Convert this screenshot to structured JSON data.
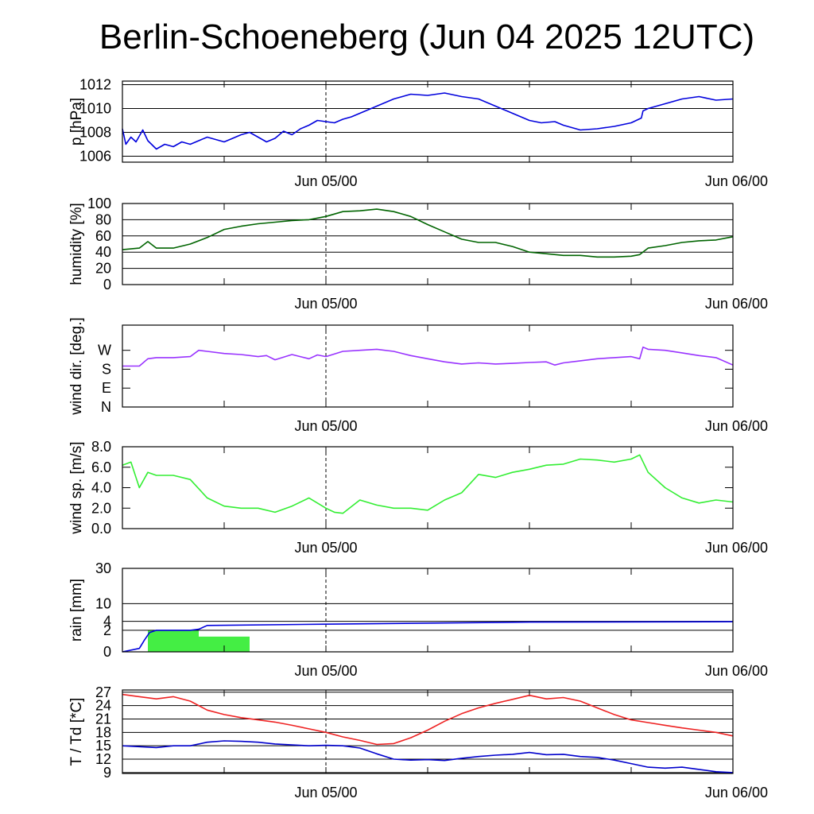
{
  "title": "Berlin-Schoeneberg (Jun 04 2025 12UTC)",
  "x_ticks": [
    {
      "label": "Jun 05/00",
      "hour": 12
    },
    {
      "label": "Jun 06/00",
      "hour": 36
    }
  ],
  "x_range": [
    0,
    36
  ],
  "colors": {
    "pressure": "#0000dd",
    "humidity": "#006400",
    "wind_dir": "#9933ff",
    "wind_speed": "#33ee33",
    "rain_cumulative": "#0000dd",
    "rain_bars": "#44ee44",
    "temperature": "#ee2222",
    "dewpoint": "#0000cc"
  },
  "chart_data": [
    {
      "type": "line",
      "ylabel": "p [hPa]",
      "ylim": [
        1005.5,
        1012.3
      ],
      "yticks": [
        1006,
        1008,
        1010,
        1012
      ],
      "ytick_labels": [
        "1006",
        "1008",
        "1010",
        "1012"
      ],
      "grid": true,
      "series": [
        {
          "color": "#0000dd",
          "x": [
            0,
            0.2,
            0.5,
            0.8,
            1.2,
            1.5,
            2,
            2.5,
            3,
            3.5,
            4,
            4.5,
            5,
            5.5,
            6,
            6.5,
            7,
            7.5,
            8,
            8.5,
            9,
            9.5,
            10,
            10.5,
            11,
            11.5,
            12,
            12.5,
            13,
            13.5,
            14,
            15,
            16,
            17,
            18,
            19,
            20,
            21,
            22,
            23,
            24,
            24.7,
            25.5,
            26,
            27,
            28,
            29,
            30,
            30.6,
            30.7,
            31,
            32,
            33,
            34,
            35,
            36
          ],
          "y": [
            1008.3,
            1007.0,
            1007.6,
            1007.2,
            1008.2,
            1007.3,
            1006.6,
            1007.0,
            1006.8,
            1007.2,
            1007.0,
            1007.3,
            1007.6,
            1007.4,
            1007.2,
            1007.5,
            1007.8,
            1008.0,
            1007.6,
            1007.2,
            1007.5,
            1008.1,
            1007.8,
            1008.3,
            1008.6,
            1009.0,
            1008.9,
            1008.8,
            1009.1,
            1009.3,
            1009.6,
            1010.2,
            1010.8,
            1011.2,
            1011.1,
            1011.3,
            1011.0,
            1010.8,
            1010.2,
            1009.6,
            1009.0,
            1008.8,
            1008.9,
            1008.6,
            1008.2,
            1008.3,
            1008.5,
            1008.8,
            1009.2,
            1009.8,
            1010.0,
            1010.4,
            1010.8,
            1011.0,
            1010.7,
            1010.8
          ]
        }
      ]
    },
    {
      "type": "line",
      "ylabel": "humidity [%]",
      "ylim": [
        0,
        100
      ],
      "yticks": [
        0,
        20,
        40,
        60,
        80,
        100
      ],
      "ytick_labels": [
        "0",
        "20",
        "40",
        "60",
        "80",
        "100"
      ],
      "grid": true,
      "series": [
        {
          "color": "#006400",
          "x": [
            0,
            1,
            1.5,
            2,
            3,
            4,
            5,
            6,
            7,
            8,
            9,
            10,
            11,
            12,
            13,
            14,
            15,
            16,
            17,
            18,
            19,
            20,
            21,
            22,
            23,
            24,
            25,
            26,
            27,
            28,
            29,
            30,
            30.5,
            31,
            32,
            33,
            34,
            35,
            36
          ],
          "y": [
            43,
            45,
            53,
            45,
            45,
            50,
            58,
            68,
            72,
            75,
            77,
            79,
            80,
            84,
            90,
            91,
            93,
            90,
            84,
            74,
            65,
            56,
            52,
            52,
            47,
            40,
            38,
            36,
            36,
            34,
            34,
            35,
            37,
            45,
            48,
            52,
            54,
            55,
            59
          ]
        }
      ]
    },
    {
      "type": "line",
      "ylabel": "wind dir. [deg.]",
      "ylim": [
        0,
        390
      ],
      "yticks": [
        0,
        90,
        180,
        270
      ],
      "ytick_labels": [
        "N",
        "E",
        "S",
        "W"
      ],
      "grid": false,
      "series": [
        {
          "color": "#9933ff",
          "x": [
            0,
            0.5,
            1,
            1.5,
            2,
            3,
            4,
            4.5,
            5,
            6,
            7,
            8,
            8.5,
            9,
            10,
            11,
            11.5,
            12,
            13,
            14,
            15,
            16,
            17,
            18,
            19,
            20,
            21,
            22,
            23,
            24,
            25,
            25.5,
            26,
            27,
            28,
            29,
            30,
            30.5,
            30.7,
            31,
            32,
            33,
            34,
            35,
            36
          ],
          "y": [
            195,
            195,
            195,
            230,
            235,
            235,
            240,
            270,
            265,
            255,
            250,
            240,
            245,
            225,
            250,
            230,
            248,
            240,
            265,
            270,
            275,
            265,
            245,
            230,
            215,
            205,
            210,
            205,
            208,
            212,
            215,
            200,
            210,
            220,
            230,
            235,
            240,
            230,
            285,
            275,
            270,
            258,
            245,
            235,
            200
          ]
        }
      ]
    },
    {
      "type": "line",
      "ylabel": "wind sp. [m/s]",
      "ylim": [
        0,
        8
      ],
      "yticks": [
        0,
        2,
        4,
        6,
        8
      ],
      "ytick_labels": [
        "0.0",
        "2.0",
        "4.0",
        "6.0",
        "8.0"
      ],
      "grid": false,
      "series": [
        {
          "color": "#33ee33",
          "x": [
            0,
            0.5,
            1,
            1.5,
            2,
            3,
            4,
            5,
            6,
            7,
            8,
            9,
            10,
            11,
            12,
            12.5,
            13,
            14,
            15,
            16,
            17,
            18,
            19,
            20,
            21,
            22,
            23,
            24,
            25,
            26,
            27,
            28,
            29,
            30,
            30.5,
            31,
            32,
            33,
            34,
            35,
            36
          ],
          "y": [
            6.2,
            6.5,
            4.0,
            5.5,
            5.2,
            5.2,
            4.8,
            3.0,
            2.2,
            2.0,
            2.0,
            1.6,
            2.2,
            3.0,
            2.0,
            1.6,
            1.5,
            2.8,
            2.3,
            2.0,
            2.0,
            1.8,
            2.8,
            3.5,
            5.3,
            5.0,
            5.5,
            5.8,
            6.2,
            6.3,
            6.8,
            6.7,
            6.5,
            6.8,
            7.2,
            5.5,
            4.0,
            3.0,
            2.5,
            2.8,
            2.6
          ]
        }
      ]
    },
    {
      "type": "bar",
      "ylabel": "rain [mm]",
      "scale": "sqrt",
      "ylim": [
        0,
        30
      ],
      "yticks": [
        0,
        2,
        4,
        10,
        30
      ],
      "ytick_labels": [
        "0",
        "2",
        "4",
        "10",
        "30"
      ],
      "grid": true,
      "bars": [
        {
          "x0": 1.5,
          "x1": 4.5,
          "value": 2.0
        },
        {
          "x0": 4.5,
          "x1": 7.5,
          "value": 1.0
        }
      ],
      "series": [
        {
          "color": "#0000dd",
          "x": [
            0,
            1.0,
            1.3,
            1.6,
            2,
            3,
            4,
            4.5,
            5,
            12,
            24,
            36
          ],
          "y": [
            0,
            0.05,
            0.6,
            1.6,
            2.0,
            2.0,
            2.0,
            2.2,
            3.0,
            3.3,
            3.8,
            3.9
          ]
        }
      ]
    },
    {
      "type": "line",
      "ylabel": "T / Td [*C]",
      "ylim": [
        8.8,
        27.5
      ],
      "yticks": [
        9,
        12,
        15,
        18,
        21,
        24,
        27
      ],
      "ytick_labels": [
        "9",
        "12",
        "15",
        "18",
        "21",
        "24",
        "27"
      ],
      "grid": true,
      "series": [
        {
          "color": "#ee2222",
          "x": [
            0,
            1,
            2,
            3,
            4,
            5,
            6,
            7,
            8,
            9,
            10,
            11,
            12,
            13,
            14,
            15,
            16,
            17,
            18,
            19,
            20,
            21,
            22,
            23,
            24,
            25,
            26,
            27,
            28,
            29,
            30,
            31,
            32,
            33,
            34,
            35,
            36
          ],
          "y": [
            26.5,
            26.0,
            25.5,
            26.0,
            25.0,
            23.0,
            22.0,
            21.3,
            20.8,
            20.3,
            19.6,
            18.8,
            18.0,
            17.0,
            16.2,
            15.3,
            15.5,
            16.8,
            18.5,
            20.5,
            22.2,
            23.5,
            24.5,
            25.4,
            26.3,
            25.5,
            25.8,
            25.0,
            23.5,
            22.0,
            20.8,
            20.2,
            19.6,
            19.0,
            18.5,
            18.0,
            17.2
          ]
        },
        {
          "color": "#0000cc",
          "x": [
            0,
            1,
            2,
            3,
            4,
            5,
            6,
            7,
            8,
            9,
            10,
            11,
            12,
            13,
            14,
            15,
            16,
            17,
            18,
            19,
            20,
            21,
            22,
            23,
            24,
            25,
            26,
            27,
            28,
            29,
            30,
            31,
            32,
            33,
            34,
            35,
            36
          ],
          "y": [
            15.0,
            14.8,
            14.6,
            15.0,
            15.0,
            15.8,
            16.1,
            16.0,
            15.8,
            15.4,
            15.2,
            15.0,
            15.1,
            15.0,
            14.5,
            13.2,
            12.0,
            11.8,
            11.9,
            11.7,
            12.2,
            12.6,
            12.9,
            13.1,
            13.5,
            13.0,
            13.1,
            12.6,
            12.4,
            11.8,
            11.0,
            10.2,
            10.0,
            10.2,
            9.7,
            9.2,
            9.0
          ]
        }
      ]
    }
  ]
}
